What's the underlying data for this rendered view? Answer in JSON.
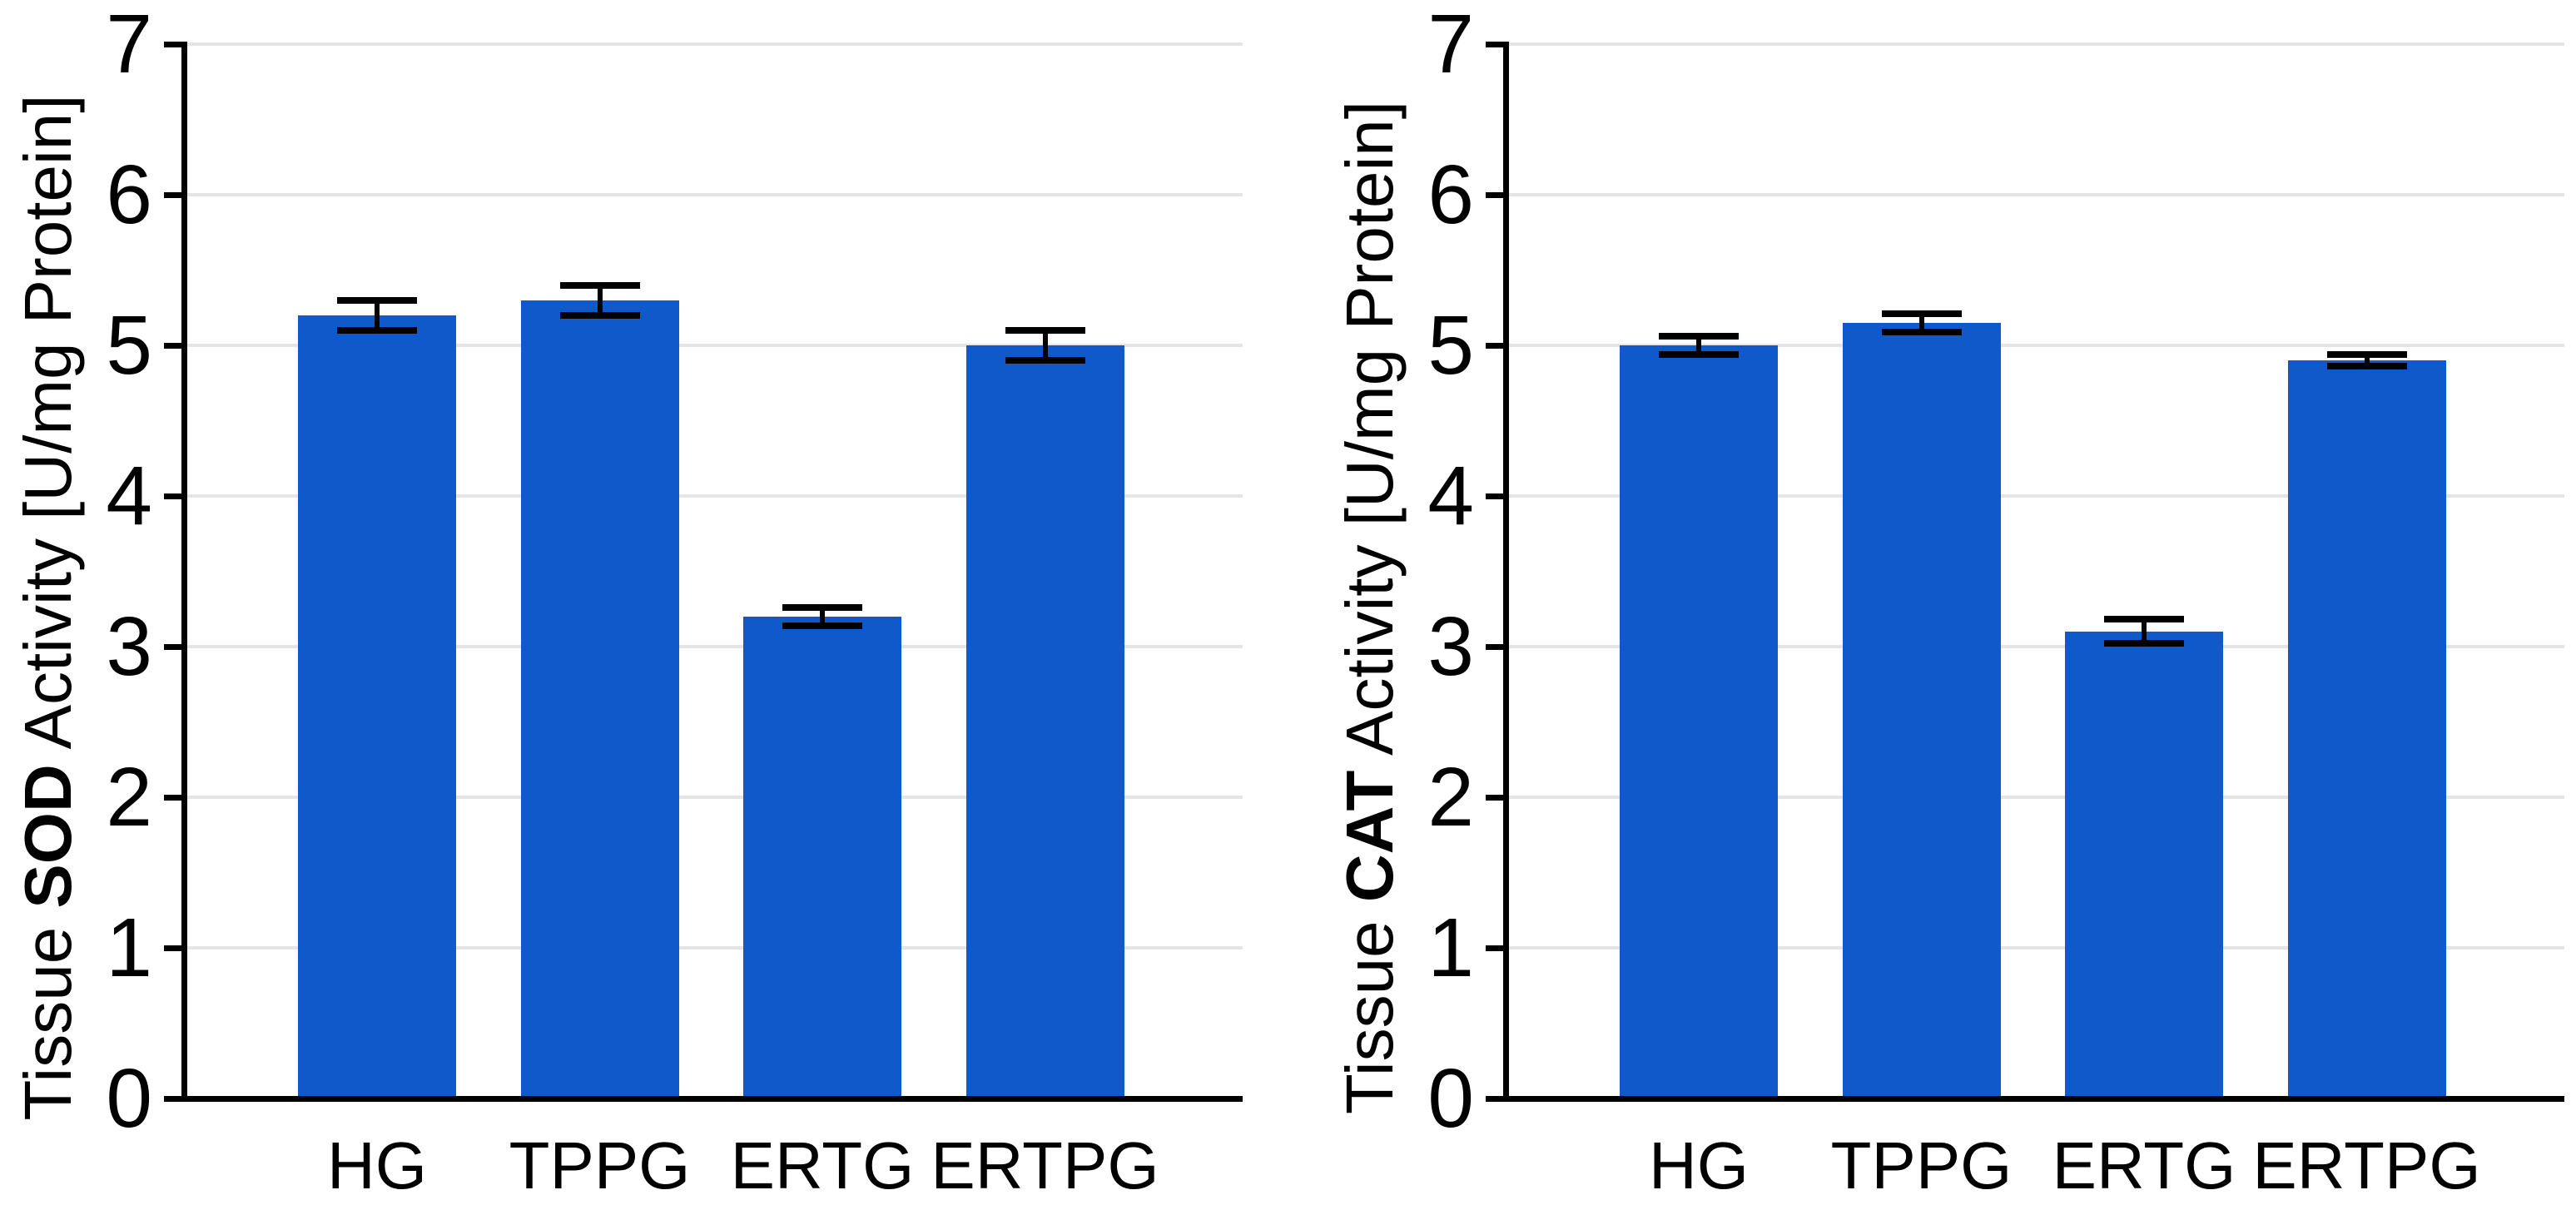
{
  "figure": {
    "background": "#ffffff",
    "bar_color": "#1059CB",
    "grid_color": "#e5e5e5",
    "axis_color": "#000000",
    "error_bar_color": "#000000"
  },
  "chart_data": [
    {
      "type": "bar",
      "panel": "left",
      "categories": [
        "HG",
        "TPPG",
        "ERTG",
        "ERTPG"
      ],
      "values": [
        5.2,
        5.3,
        3.2,
        5.0
      ],
      "errors": [
        0.1,
        0.1,
        0.06,
        0.1
      ],
      "title": "",
      "xlabel": "",
      "ylabel": "Tissue SOD Activity [U/mg Protein]",
      "ylabel_prefix": "Tissue ",
      "ylabel_bold": "SOD",
      "ylabel_suffix": " Activity [U/mg Protein]",
      "ylim": [
        0,
        7
      ],
      "yticks": [
        0,
        1,
        2,
        3,
        4,
        5,
        6,
        7
      ],
      "grid": "horizontal",
      "legend": "none",
      "bar_color": "#1059CB",
      "error_bars": "plus-minus with caps"
    },
    {
      "type": "bar",
      "panel": "right",
      "categories": [
        "HG",
        "TPPG",
        "ERTG",
        "ERTPG"
      ],
      "values": [
        5.0,
        5.15,
        3.1,
        4.9
      ],
      "errors": [
        0.06,
        0.06,
        0.08,
        0.04
      ],
      "title": "",
      "xlabel": "",
      "ylabel": "Tissue CAT Activity [U/mg Protein]",
      "ylabel_prefix": "Tissue ",
      "ylabel_bold": "CAT",
      "ylabel_suffix": " Activity [U/mg Protein]",
      "ylim": [
        0,
        7
      ],
      "yticks": [
        0,
        1,
        2,
        3,
        4,
        5,
        6,
        7
      ],
      "grid": "horizontal",
      "legend": "none",
      "bar_color": "#1059CB",
      "error_bars": "plus-minus with caps"
    }
  ]
}
